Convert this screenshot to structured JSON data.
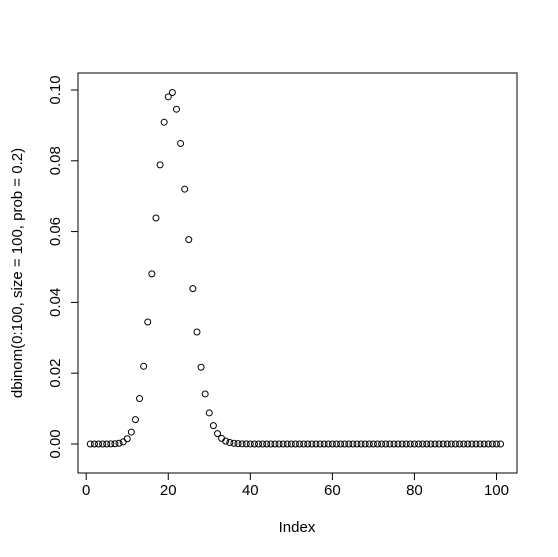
{
  "chart_data": {
    "type": "scatter",
    "x_label": "Index",
    "y_label": "dbinom(0:100, size = 100, prob = 0.2)",
    "x": [
      1,
      2,
      3,
      4,
      5,
      6,
      7,
      8,
      9,
      10,
      11,
      12,
      13,
      14,
      15,
      16,
      17,
      18,
      19,
      20,
      21,
      22,
      23,
      24,
      25,
      26,
      27,
      28,
      29,
      30,
      31,
      32,
      33,
      34,
      35,
      36,
      37,
      38,
      39,
      40,
      41,
      42,
      43,
      44,
      45,
      46,
      47,
      48,
      49,
      50,
      51,
      52,
      53,
      54,
      55,
      56,
      57,
      58,
      59,
      60,
      61,
      62,
      63,
      64,
      65,
      66,
      67,
      68,
      69,
      70,
      71,
      72,
      73,
      74,
      75,
      76,
      77,
      78,
      79,
      80,
      81,
      82,
      83,
      84,
      85,
      86,
      87,
      88,
      89,
      90,
      91,
      92,
      93,
      94,
      95,
      96,
      97,
      98,
      99,
      100,
      101
    ],
    "values": [
      0,
      0,
      0,
      0,
      0,
      2e-05,
      6e-05,
      0.0002,
      0.00058,
      0.00148,
      0.00336,
      0.00687,
      0.01283,
      0.02194,
      0.03445,
      0.04806,
      0.06383,
      0.07885,
      0.0909,
      0.09807,
      0.0993,
      0.09457,
      0.0849,
      0.07198,
      0.05773,
      0.04388,
      0.03164,
      0.02168,
      0.01413,
      0.00877,
      0.00518,
      0.00292,
      0.00157,
      0.00081,
      0.0004,
      0.00019,
      9e-05,
      4e-05,
      2e-05,
      1e-05,
      0,
      0,
      0,
      0,
      0,
      0,
      0,
      0,
      0,
      0,
      0,
      0,
      0,
      0,
      0,
      0,
      0,
      0,
      0,
      0,
      0,
      0,
      0,
      0,
      0,
      0,
      0,
      0,
      0,
      0,
      0,
      0,
      0,
      0,
      0,
      0,
      0,
      0,
      0,
      0,
      0,
      0,
      0,
      0,
      0,
      0,
      0,
      0,
      0,
      0,
      0,
      0,
      0,
      0,
      0,
      0,
      0,
      0,
      0,
      0,
      0
    ],
    "color": "#000000",
    "xlim": [
      -2,
      105
    ],
    "ylim": [
      -0.0082,
      0.1048
    ],
    "xticks": [
      0,
      20,
      40,
      60,
      80,
      100
    ],
    "yticks": [
      {
        "value": 0,
        "label": "0.00"
      },
      0.02,
      0.04,
      0.06,
      0.08,
      {
        "value": 0.1,
        "label": "0.10"
      }
    ]
  }
}
